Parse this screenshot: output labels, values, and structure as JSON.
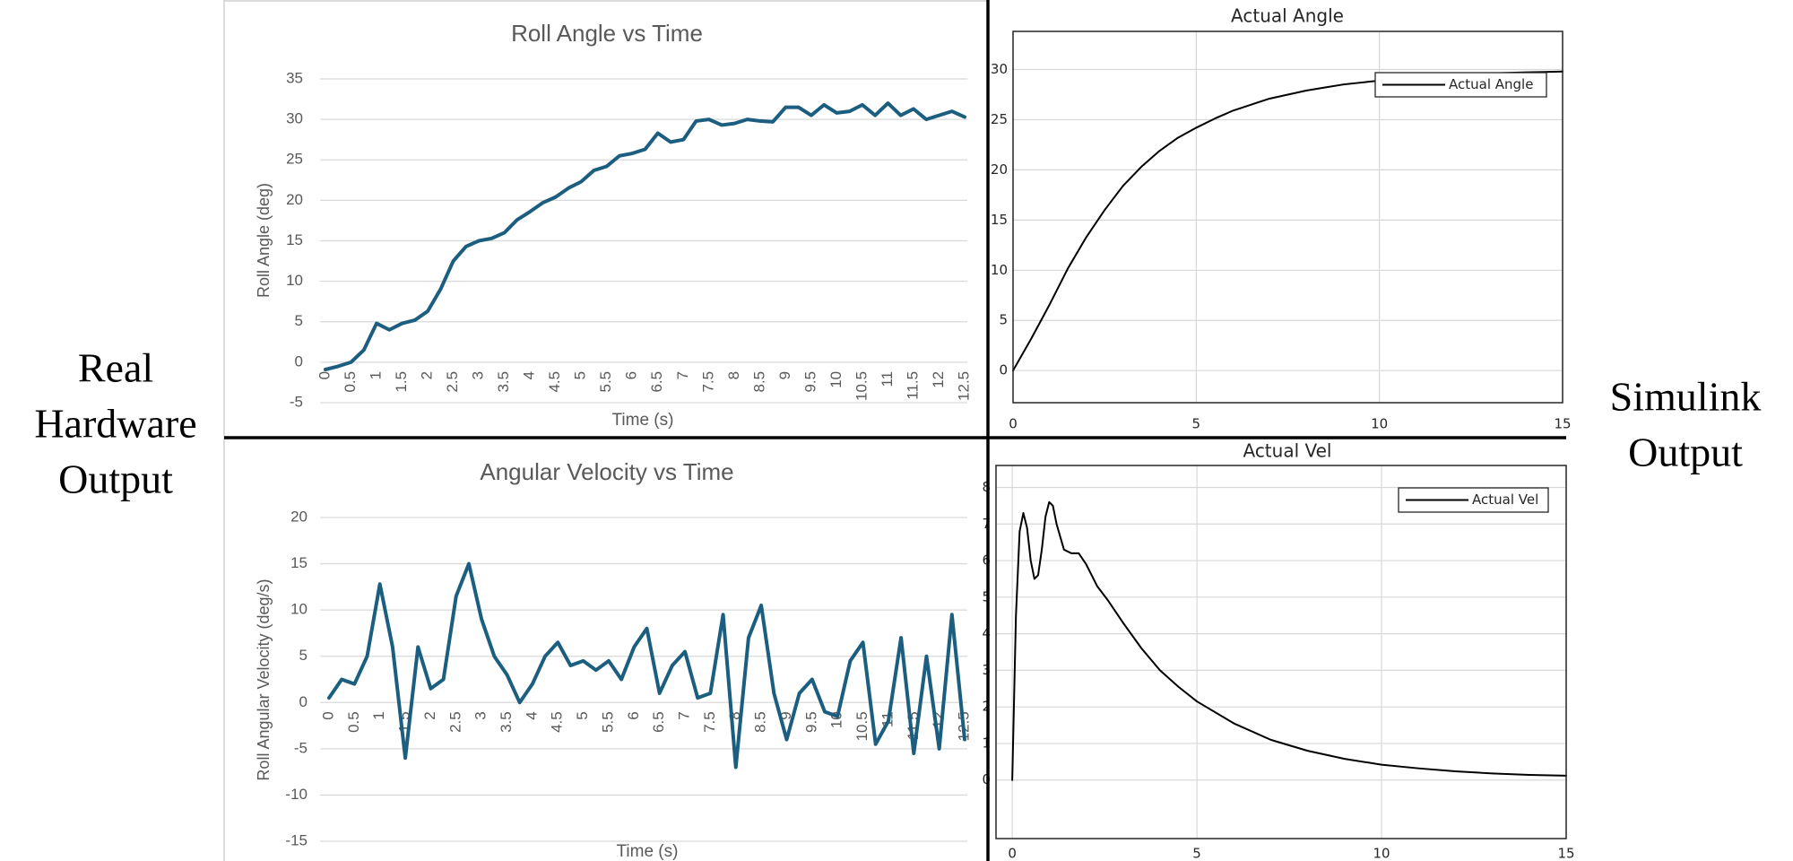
{
  "side_labels": {
    "left": [
      "Real",
      "Hardware",
      "Output"
    ],
    "right": [
      "Simulink",
      "Output"
    ]
  },
  "chart_data": [
    {
      "type": "line",
      "title": "Roll Angle vs Time",
      "x_label": "Time (s)",
      "y_label": "Roll Angle (deg)",
      "color": "#1b5e80",
      "grid": true,
      "x": [
        0,
        0.25,
        0.5,
        0.75,
        1,
        1.25,
        1.5,
        1.75,
        2,
        2.25,
        2.5,
        2.75,
        3,
        3.25,
        3.5,
        3.75,
        4,
        4.25,
        4.5,
        4.75,
        5,
        5.25,
        5.5,
        5.75,
        6,
        6.25,
        6.5,
        6.75,
        7,
        7.25,
        7.5,
        7.75,
        8,
        8.25,
        8.5,
        8.75,
        9,
        9.25,
        9.5,
        9.75,
        10,
        10.25,
        10.5,
        10.75,
        11,
        11.25,
        11.5,
        11.75,
        12,
        12.25,
        12.5
      ],
      "values": [
        -0.9,
        -0.5,
        0,
        1.5,
        4.8,
        4.0,
        4.8,
        5.2,
        6.3,
        9,
        12.5,
        14.3,
        15,
        15.3,
        16,
        17.6,
        18.6,
        19.7,
        20.4,
        21.5,
        22.3,
        23.7,
        24.2,
        25.5,
        25.8,
        26.3,
        28.3,
        27.2,
        27.5,
        29.8,
        30,
        29.3,
        29.5,
        30,
        29.8,
        29.7,
        31.5,
        31.5,
        30.5,
        31.8,
        30.8,
        31,
        31.8,
        30.5,
        32,
        30.5,
        31.3,
        30,
        30.5,
        31,
        30.3
      ],
      "xlim": [
        0,
        12.5
      ],
      "xticks": [
        0,
        0.5,
        1,
        1.5,
        2,
        2.5,
        3,
        3.5,
        4,
        4.5,
        5,
        5.5,
        6,
        6.5,
        7,
        7.5,
        8,
        8.5,
        9,
        9.5,
        10,
        10.5,
        11,
        11.5,
        12,
        12.5
      ],
      "ylim": [
        -5,
        35
      ],
      "yticks": [
        -5,
        0,
        5,
        10,
        15,
        20,
        25,
        30,
        35
      ]
    },
    {
      "type": "line",
      "title": "Angular Velocity vs Time",
      "x_label": "Time (s)",
      "y_label": "Roll Angular Velocity (deg/s)",
      "color": "#1b5e80",
      "grid": true,
      "x": [
        0,
        0.25,
        0.5,
        0.75,
        1,
        1.25,
        1.5,
        1.75,
        2,
        2.25,
        2.5,
        2.75,
        3,
        3.25,
        3.5,
        3.75,
        4,
        4.25,
        4.5,
        4.75,
        5,
        5.25,
        5.5,
        5.75,
        6,
        6.25,
        6.5,
        6.75,
        7,
        7.25,
        7.5,
        7.75,
        8,
        8.25,
        8.5,
        8.75,
        9,
        9.25,
        9.5,
        9.75,
        10,
        10.25,
        10.5,
        10.75,
        11,
        11.25,
        11.5,
        11.75,
        12,
        12.25,
        12.5
      ],
      "values": [
        0.5,
        2.5,
        2,
        5,
        12.8,
        6,
        -6,
        6,
        1.5,
        2.5,
        11.5,
        15,
        9,
        5,
        3,
        0,
        2,
        5,
        6.5,
        4,
        4.5,
        3.5,
        4.5,
        2.5,
        6,
        8,
        1,
        4,
        5.5,
        0.5,
        1,
        9.5,
        -7,
        7,
        10.5,
        1,
        -4,
        1,
        2.5,
        -1,
        -1.5,
        4.5,
        6.5,
        -4.5,
        -2,
        7,
        -5.5,
        5,
        -5,
        9.5,
        -4
      ],
      "xlim": [
        0,
        12.5
      ],
      "xticks": [
        0,
        0.5,
        1,
        1.5,
        2,
        2.5,
        3,
        3.5,
        4,
        4.5,
        5,
        5.5,
        6,
        6.5,
        7,
        7.5,
        8,
        8.5,
        9,
        9.5,
        10,
        10.5,
        11,
        11.5,
        12,
        12.5
      ],
      "ylim": [
        -15,
        20
      ],
      "yticks": [
        -15,
        -10,
        -5,
        0,
        5,
        10,
        15,
        20
      ]
    },
    {
      "type": "line",
      "title": "Actual Angle",
      "grid": true,
      "legend": "upper right",
      "x": [
        0,
        0.5,
        1,
        1.5,
        2,
        2.5,
        3,
        3.5,
        4,
        4.5,
        5,
        5.5,
        6,
        6.5,
        7,
        7.5,
        8,
        8.5,
        9,
        9.5,
        10,
        10.5,
        11,
        11.5,
        12,
        12.5,
        13,
        13.5,
        14,
        14.5,
        15
      ],
      "series": [
        {
          "name": "Actual Angle",
          "color": "#000000",
          "values": [
            0,
            3.2,
            6.6,
            10.2,
            13.3,
            16,
            18.4,
            20.3,
            21.9,
            23.2,
            24.2,
            25.1,
            25.9,
            26.5,
            27.1,
            27.5,
            27.9,
            28.2,
            28.5,
            28.7,
            28.9,
            29.1,
            29.2,
            29.35,
            29.45,
            29.54,
            29.61,
            29.67,
            29.72,
            29.76,
            29.8
          ]
        }
      ],
      "xlim": [
        0,
        15
      ],
      "xticks": [
        0,
        5,
        10,
        15
      ],
      "ylim": [
        -3.2,
        33.8
      ],
      "yticks": [
        0,
        5,
        10,
        15,
        20,
        25,
        30
      ]
    },
    {
      "type": "line",
      "title": "Actual Vel",
      "grid": true,
      "legend": "upper right",
      "x": [
        0,
        0.1,
        0.2,
        0.3,
        0.4,
        0.5,
        0.6,
        0.7,
        0.8,
        0.9,
        1.0,
        1.1,
        1.2,
        1.4,
        1.6,
        1.8,
        2.0,
        2.3,
        2.6,
        3,
        3.5,
        4,
        4.5,
        5,
        6,
        7,
        8,
        9,
        10,
        11,
        12,
        13,
        14,
        15
      ],
      "series": [
        {
          "name": "Actual Vel",
          "color": "#000000",
          "values": [
            0,
            4.5,
            6.8,
            7.3,
            6.9,
            6.0,
            5.5,
            5.6,
            6.3,
            7.2,
            7.6,
            7.5,
            7.0,
            6.3,
            6.2,
            6.2,
            5.9,
            5.3,
            4.9,
            4.3,
            3.6,
            3.0,
            2.55,
            2.15,
            1.55,
            1.1,
            0.8,
            0.58,
            0.42,
            0.32,
            0.24,
            0.18,
            0.14,
            0.12
          ]
        }
      ],
      "xlim": [
        -0.44,
        15
      ],
      "xticks": [
        0,
        5,
        10,
        15
      ],
      "ylim": [
        -1.6,
        8.6
      ],
      "yticks": [
        0,
        1,
        2,
        3,
        4,
        5,
        6,
        7,
        8
      ]
    }
  ]
}
